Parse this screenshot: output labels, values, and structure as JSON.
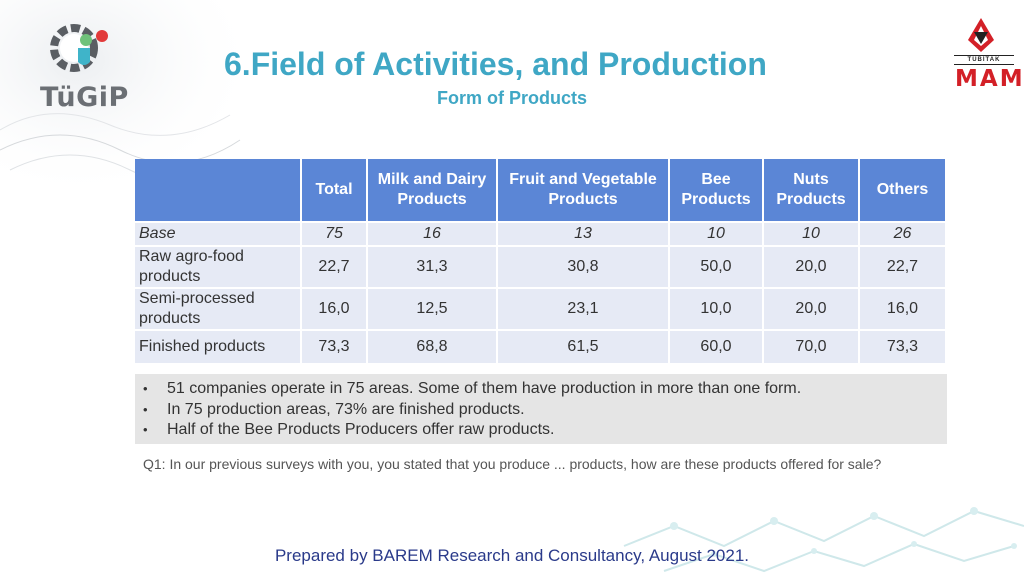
{
  "logos": {
    "left_text": "TüGiP",
    "right_top": "TÜBİTAK",
    "right_main": "MAM"
  },
  "header": {
    "title": "6.Field of Activities, and Production",
    "subtitle": "Form of Products"
  },
  "table": {
    "columns": [
      "",
      "Total",
      "Milk and Dairy Products",
      "Fruit and Vegetable Products",
      "Bee Products",
      "Nuts Products",
      "Others"
    ],
    "rows": [
      {
        "label": "Base",
        "values": [
          "75",
          "16",
          "13",
          "10",
          "10",
          "26"
        ]
      },
      {
        "label": "Raw agro-food products",
        "values": [
          "22,7",
          "31,3",
          "30,8",
          "50,0",
          "20,0",
          "22,7"
        ]
      },
      {
        "label": "Semi-processed products",
        "values": [
          "16,0",
          "12,5",
          "23,1",
          "10,0",
          "20,0",
          "16,0"
        ]
      },
      {
        "label": "Finished products",
        "values": [
          "73,3",
          "68,8",
          "61,5",
          "60,0",
          "70,0",
          "73,3"
        ]
      }
    ]
  },
  "notes": [
    "51 companies operate in 75 areas. Some of them have production in more than one form.",
    "In 75 production areas, 73% are finished products.",
    "Half of the Bee Products Producers offer raw products."
  ],
  "question": "Q1: In our previous surveys with you, you stated that you produce ... products, how are these products offered for sale?",
  "footer": "Prepared by BAREM Research and Consultancy, August 2021."
}
